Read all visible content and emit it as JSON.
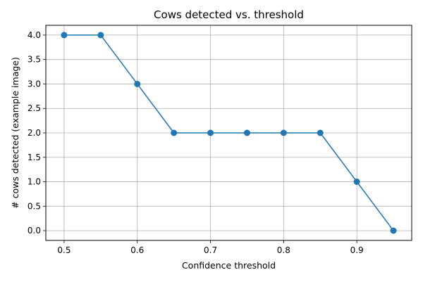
{
  "chart_data": {
    "type": "line",
    "title": "Cows detected vs. threshold",
    "xlabel": "Confidence threshold",
    "ylabel": "# cows detected (example image)",
    "x": [
      0.5,
      0.55,
      0.6,
      0.65,
      0.7,
      0.75,
      0.8,
      0.85,
      0.9,
      0.95
    ],
    "series": [
      {
        "values": [
          4,
          4,
          3,
          2,
          2,
          2,
          2,
          2,
          1,
          0
        ],
        "color": "#1f77b4",
        "marker": "circle"
      }
    ],
    "xlim": [
      0.475,
      0.975
    ],
    "ylim": [
      -0.2,
      4.2
    ],
    "xticks": [
      0.5,
      0.6,
      0.7,
      0.8,
      0.9
    ],
    "xtick_labels": [
      "0.5",
      "0.6",
      "0.7",
      "0.8",
      "0.9"
    ],
    "yticks": [
      0,
      0.5,
      1,
      1.5,
      2,
      2.5,
      3,
      3.5,
      4
    ],
    "ytick_labels": [
      "0.0",
      "0.5",
      "1.0",
      "1.5",
      "2.0",
      "2.5",
      "3.0",
      "3.5",
      "4.0"
    ],
    "grid": true,
    "colors": {
      "grid": "#b0b0b0",
      "axes": "#000000",
      "line": "#1f77b4"
    }
  }
}
